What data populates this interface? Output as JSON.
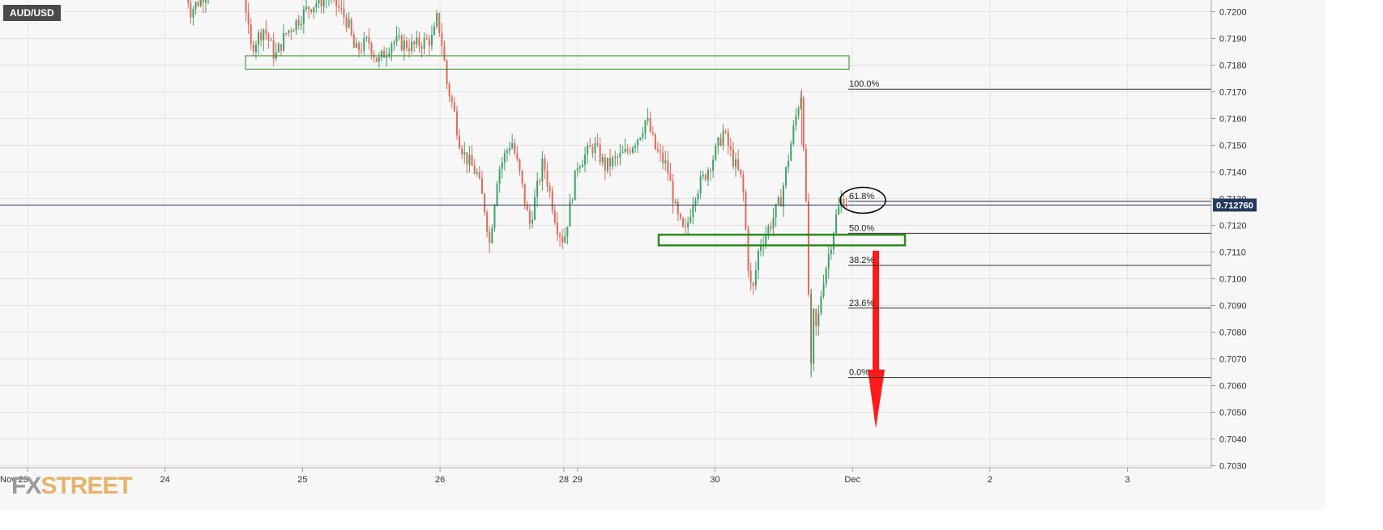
{
  "symbol": "AUD/USD",
  "logo": {
    "part1": "FX",
    "part2": "STREET"
  },
  "colors": {
    "up": "#3fa069",
    "down": "#e06a5a",
    "zone": "#2e8b1e",
    "arrow": "#ff1a1a",
    "price_tag_bg": "#233a5c"
  },
  "chart_data": {
    "type": "candlestick",
    "ylim": [
      0.7026,
      0.7206
    ],
    "y_ticks": [
      "0.7030",
      "0.7040",
      "0.7050",
      "0.7060",
      "0.7070",
      "0.7080",
      "0.7090",
      "0.7100",
      "0.7110",
      "0.7120",
      "0.7130",
      "0.7140",
      "0.7150",
      "0.7160",
      "0.7170",
      "0.7180",
      "0.7190",
      "0.7200"
    ],
    "x_tick_labels": [
      {
        "label": "Nov 23",
        "day": 0
      },
      {
        "label": "24",
        "day": 1
      },
      {
        "label": "25",
        "day": 2
      },
      {
        "label": "26",
        "day": 3
      },
      {
        "label": "28",
        "day": 3.9
      },
      {
        "label": "29",
        "day": 4
      },
      {
        "label": "30",
        "day": 5
      },
      {
        "label": "Dec",
        "day": 6
      },
      {
        "label": "2",
        "day": 7
      },
      {
        "label": "3",
        "day": 8
      }
    ],
    "current_price": "0.712760",
    "fibonacci": [
      {
        "label": "100.0%",
        "price": 0.7171
      },
      {
        "label": "61.8%",
        "price": 0.7129
      },
      {
        "label": "50.0%",
        "price": 0.7117
      },
      {
        "label": "38.2%",
        "price": 0.7105
      },
      {
        "label": "23.6%",
        "price": 0.7089
      },
      {
        "label": "0.0%",
        "price": 0.7063
      }
    ],
    "price_path": [
      [
        1.15,
        0.7212
      ],
      [
        1.18,
        0.72
      ],
      [
        1.53,
        0.7222
      ],
      [
        1.58,
        0.7205
      ],
      [
        1.62,
        0.7186
      ],
      [
        1.72,
        0.7194
      ],
      [
        1.8,
        0.7183
      ],
      [
        1.88,
        0.7192
      ],
      [
        1.95,
        0.7196
      ],
      [
        2.05,
        0.7202
      ],
      [
        2.2,
        0.7206
      ],
      [
        2.33,
        0.7196
      ],
      [
        2.38,
        0.7185
      ],
      [
        2.48,
        0.7189
      ],
      [
        2.55,
        0.7181
      ],
      [
        2.65,
        0.7189
      ],
      [
        2.8,
        0.7187
      ],
      [
        2.95,
        0.719
      ],
      [
        2.98,
        0.7198
      ],
      [
        3.02,
        0.7186
      ],
      [
        3.05,
        0.7173
      ],
      [
        3.1,
        0.7163
      ],
      [
        3.14,
        0.7152
      ],
      [
        3.18,
        0.7146
      ],
      [
        3.27,
        0.7139
      ],
      [
        3.33,
        0.7125
      ],
      [
        3.36,
        0.7113
      ],
      [
        3.42,
        0.714
      ],
      [
        3.52,
        0.7152
      ],
      [
        3.58,
        0.7139
      ],
      [
        3.65,
        0.712
      ],
      [
        3.75,
        0.7144
      ],
      [
        3.85,
        0.712
      ],
      [
        3.9,
        0.7114
      ],
      [
        4.0,
        0.7143
      ],
      [
        4.12,
        0.715
      ],
      [
        4.2,
        0.7142
      ],
      [
        4.35,
        0.7147
      ],
      [
        4.45,
        0.7154
      ],
      [
        4.5,
        0.716
      ],
      [
        4.57,
        0.7148
      ],
      [
        4.65,
        0.7142
      ],
      [
        4.72,
        0.7124
      ],
      [
        4.78,
        0.7116
      ],
      [
        4.85,
        0.7132
      ],
      [
        4.92,
        0.7138
      ],
      [
        5.0,
        0.7147
      ],
      [
        5.06,
        0.7155
      ],
      [
        5.12,
        0.7146
      ],
      [
        5.2,
        0.7136
      ],
      [
        5.24,
        0.7106
      ],
      [
        5.27,
        0.7093
      ],
      [
        5.32,
        0.7112
      ],
      [
        5.4,
        0.712
      ],
      [
        5.48,
        0.713
      ],
      [
        5.55,
        0.715
      ],
      [
        5.6,
        0.7164
      ],
      [
        5.63,
        0.717
      ],
      [
        5.66,
        0.713
      ],
      [
        5.68,
        0.7095
      ],
      [
        5.7,
        0.7063
      ],
      [
        5.71,
        0.7088
      ],
      [
        5.74,
        0.708
      ],
      [
        5.78,
        0.7098
      ],
      [
        5.83,
        0.711
      ],
      [
        5.88,
        0.7123
      ],
      [
        5.93,
        0.7131
      ],
      [
        5.96,
        0.7128
      ]
    ]
  }
}
